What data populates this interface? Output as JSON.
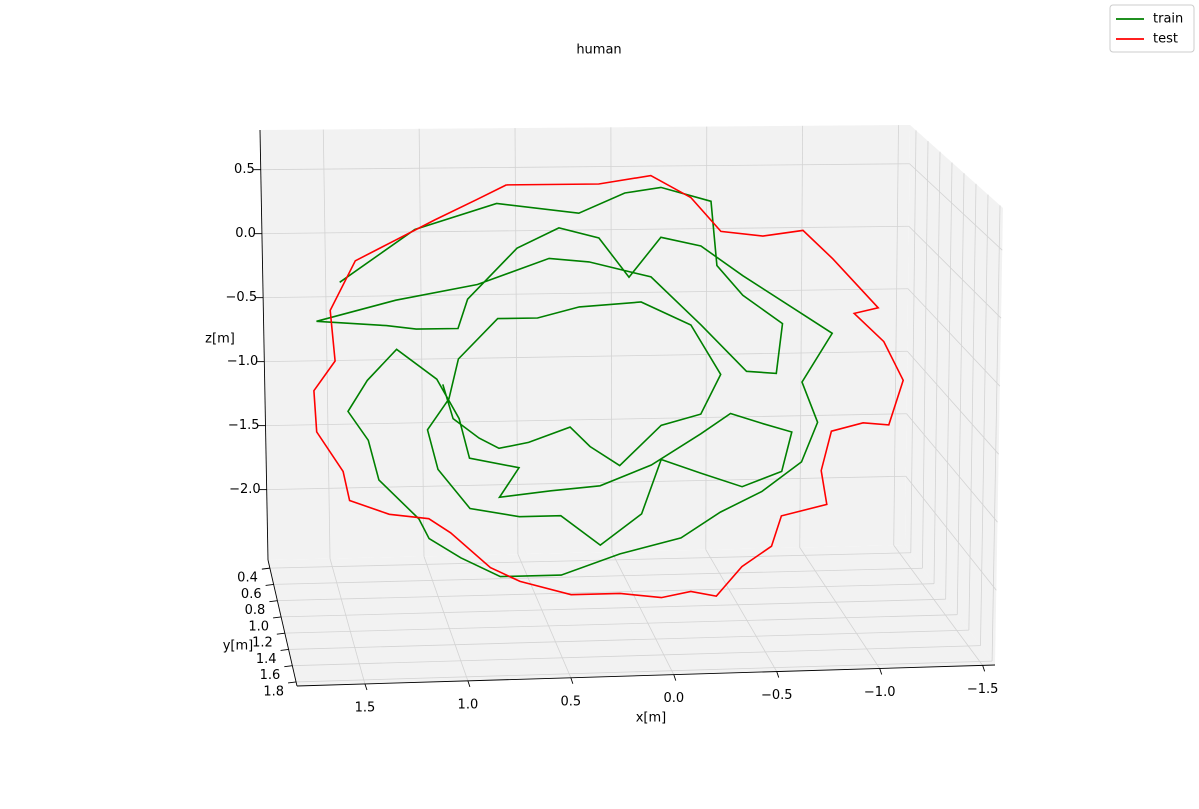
{
  "chart_data": {
    "type": "line3d",
    "title": "human",
    "xlabel": "x[m]",
    "ylabel": "y[m]",
    "zlabel": "z[m]",
    "xlim": [
      1.83,
      -1.56
    ],
    "ylim": [
      0.3,
      1.85
    ],
    "zlim": [
      -2.55,
      0.81
    ],
    "xticks": [
      1.5,
      {
        "value": 1,
        "label": "1.0"
      },
      0.5,
      {
        "value": 0,
        "label": "0.0"
      },
      {
        "value": -0.5,
        "label": "−0.5"
      },
      {
        "value": -1,
        "label": "−1.0"
      },
      {
        "value": -1.5,
        "label": "−1.5"
      }
    ],
    "yticks": [
      0.4,
      0.6,
      0.8,
      {
        "value": 1,
        "label": "1.0"
      },
      1.2,
      1.4,
      1.6,
      1.8
    ],
    "zticks": [
      0.5,
      {
        "value": 0,
        "label": "0.0"
      },
      {
        "value": -0.5,
        "label": "−0.5"
      },
      {
        "value": -1,
        "label": "−1.0"
      },
      {
        "value": -1.5,
        "label": "−1.5"
      },
      {
        "value": -2,
        "label": "−2.0"
      }
    ],
    "grid": true,
    "legend": "upper right",
    "series": [
      {
        "name": "train",
        "color": "#008000",
        "x": [
          1.5,
          1.12,
          0.71,
          0.3,
          0.07,
          -0.11,
          -0.36,
          -0.39,
          -0.52,
          -0.72,
          -0.69,
          -0.54,
          -0.31,
          -0.06,
          0.25,
          0.45,
          0.81,
          1.22,
          1.62,
          1.27,
          1.12,
          0.91,
          0.86,
          0.61,
          0.4,
          0.2,
          0.05,
          -0.11,
          -0.31,
          -0.52,
          -0.82,
          -0.97,
          -0.82,
          -0.9,
          -0.82,
          -0.62,
          -0.41,
          -0.21,
          0.1,
          0.4,
          0.71,
          0.91,
          1.07,
          1.12,
          1.32,
          1.37,
          1.47,
          1.37,
          1.22,
          1.02,
          0.91,
          0.86,
          0.61,
          0.71,
          0.45,
          0.2,
          -0.06,
          -0.31,
          -0.46,
          -0.62,
          -0.77,
          -0.72,
          -0.52,
          -0.31,
          -0.11,
          -0.01,
          0.2,
          0.4,
          0.61,
          0.86,
          1.02,
          1.07,
          0.96,
          0.91,
          0.71,
          0.51,
          0.3,
          -0.01,
          -0.26,
          -0.41,
          -0.31,
          -0.11,
          0.1,
          0.25,
          0.35,
          0.56,
          0.71,
          0.81,
          0.94,
          0.99
        ],
        "y": [
          1,
          1,
          1,
          1,
          1,
          1,
          1,
          1,
          1,
          1,
          1,
          1,
          1,
          1,
          1,
          1,
          1,
          1,
          1,
          1,
          1,
          1,
          1,
          1,
          1,
          1,
          1,
          1,
          1,
          1,
          1,
          1,
          1,
          1,
          1,
          1,
          1,
          1,
          1,
          1,
          1,
          1,
          1,
          1,
          1,
          1,
          1,
          1,
          1,
          1,
          1,
          1,
          1,
          1,
          1,
          1,
          1,
          1,
          1,
          1,
          1,
          1,
          1,
          1,
          1,
          1,
          1,
          1,
          1,
          1,
          1,
          1,
          1,
          1,
          1,
          1,
          1,
          1,
          1,
          1,
          1,
          1,
          1,
          1,
          1,
          1,
          1,
          1,
          1,
          1
        ],
        "z": [
          -0.05,
          0.34,
          0.53,
          0.45,
          0.6,
          0.64,
          0.53,
          0.04,
          -0.19,
          -0.41,
          -0.79,
          -0.77,
          -0.41,
          -0.04,
          0.08,
          0.11,
          -0.08,
          -0.19,
          -0.34,
          -0.38,
          -0.41,
          -0.41,
          -0.19,
          0.19,
          0.34,
          0.26,
          -0.04,
          0.26,
          0.19,
          -0.04,
          -0.34,
          -0.49,
          -0.86,
          -1.17,
          -1.47,
          -1.69,
          -1.84,
          -2.03,
          -2.14,
          -2.29,
          -2.29,
          -2.14,
          -1.99,
          -1.84,
          -1.54,
          -1.24,
          -1.02,
          -0.79,
          -0.56,
          -0.79,
          -1.09,
          -1.39,
          -1.47,
          -1.69,
          -1.65,
          -1.62,
          -1.47,
          -1.24,
          -1.09,
          -1.17,
          -1.24,
          -1.54,
          -1.65,
          -1.54,
          -1.43,
          -1.84,
          -2.07,
          -1.84,
          -1.84,
          -1.77,
          -1.47,
          -1.17,
          -0.94,
          -0.64,
          -0.34,
          -0.34,
          -0.26,
          -0.23,
          -0.41,
          -0.79,
          -1.09,
          -1.17,
          -1.47,
          -1.32,
          -1.17,
          -1.28,
          -1.32,
          -1.24,
          -1.09,
          -0.83
        ]
      },
      {
        "name": "test",
        "color": "#ff0000",
        "x": [
          0.66,
          0.2,
          -0.06,
          -0.26,
          -0.41,
          -0.62,
          -0.82,
          -0.97,
          -1.2,
          -1.08,
          -1.23,
          -1.33,
          -1.26,
          -1.13,
          -0.97,
          -0.92,
          -0.95,
          -0.72,
          -0.67,
          -0.52,
          -0.39,
          -0.26,
          -0.11,
          0.1,
          0.35,
          0.61,
          0.76,
          0.96,
          1.07,
          1.27,
          1.47,
          1.5,
          1.63,
          1.64,
          1.53,
          1.55,
          1.42,
          1.22,
          1.02,
          0.81,
          0.66
        ],
        "y": [
          1,
          1,
          1,
          1,
          1,
          1,
          1,
          1,
          1,
          1,
          1,
          1,
          1,
          1,
          1,
          1,
          1,
          1,
          1,
          1,
          1,
          1,
          1,
          1,
          1,
          1,
          1,
          1,
          1,
          1,
          1,
          1,
          1,
          1,
          1,
          1,
          1,
          1,
          1,
          1,
          1
        ],
        "z": [
          0.67,
          0.67,
          0.73,
          0.56,
          0.3,
          0.26,
          0.3,
          0.08,
          -0.3,
          -0.34,
          -0.56,
          -0.86,
          -1.2,
          -1.18,
          -1.24,
          -1.54,
          -1.8,
          -1.88,
          -2.11,
          -2.26,
          -2.48,
          -2.44,
          -2.48,
          -2.44,
          -2.44,
          -2.33,
          -2.22,
          -1.95,
          -1.84,
          -1.8,
          -1.69,
          -1.47,
          -1.17,
          -0.86,
          -0.64,
          -0.26,
          0.11,
          0.26,
          0.41,
          0.56,
          0.67
        ]
      }
    ]
  }
}
